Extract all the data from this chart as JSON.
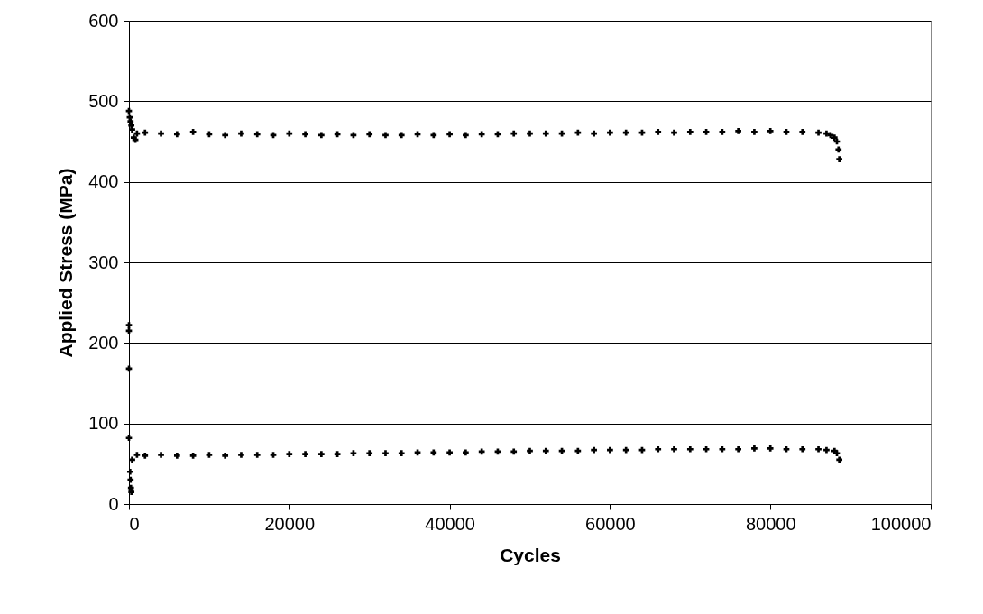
{
  "chart_data": {
    "type": "scatter",
    "xlabel": "Cycles",
    "ylabel": "Applied Stress (MPa)",
    "xlim": [
      0,
      100000
    ],
    "xticks": [
      0,
      20000,
      40000,
      60000,
      80000,
      100000
    ],
    "ylim": [
      0,
      600
    ],
    "yticks": [
      0,
      100,
      200,
      300,
      400,
      500,
      600
    ],
    "grid": "y",
    "marker": "cross",
    "series": [
      {
        "color": "#000000",
        "x": [
          0,
          100,
          200,
          300,
          400,
          600,
          800,
          1000,
          2000,
          4000,
          6000,
          8000,
          10000,
          12000,
          14000,
          16000,
          18000,
          20000,
          22000,
          24000,
          26000,
          28000,
          30000,
          32000,
          34000,
          36000,
          38000,
          40000,
          42000,
          44000,
          46000,
          48000,
          50000,
          52000,
          54000,
          56000,
          58000,
          60000,
          62000,
          64000,
          66000,
          68000,
          70000,
          72000,
          74000,
          76000,
          78000,
          80000,
          82000,
          84000,
          86000,
          87000,
          87500,
          88000,
          88300,
          88500,
          88600
        ],
        "values": [
          488,
          480,
          475,
          470,
          465,
          455,
          452,
          460,
          461,
          460,
          459,
          462,
          459,
          458,
          460,
          459,
          458,
          460,
          459,
          458,
          459,
          458,
          459,
          458,
          458,
          459,
          458,
          459,
          458,
          459,
          459,
          460,
          460,
          460,
          460,
          461,
          460,
          461,
          461,
          461,
          462,
          461,
          462,
          462,
          462,
          463,
          462,
          463,
          462,
          462,
          461,
          460,
          458,
          455,
          450,
          440,
          428
        ]
      },
      {
        "color": "#000000",
        "x": [
          0,
          0,
          0,
          0,
          150,
          200,
          250,
          300,
          400,
          1000,
          2000,
          4000,
          6000,
          8000,
          10000,
          12000,
          14000,
          16000,
          18000,
          20000,
          22000,
          24000,
          26000,
          28000,
          30000,
          32000,
          34000,
          36000,
          38000,
          40000,
          42000,
          44000,
          46000,
          48000,
          50000,
          52000,
          54000,
          56000,
          58000,
          60000,
          62000,
          64000,
          66000,
          68000,
          70000,
          72000,
          74000,
          76000,
          78000,
          80000,
          82000,
          84000,
          86000,
          87000,
          88000,
          88300,
          88600
        ],
        "values": [
          222,
          215,
          168,
          82,
          40,
          30,
          20,
          15,
          55,
          61,
          60,
          61,
          60,
          60,
          61,
          60,
          61,
          61,
          61,
          62,
          62,
          62,
          62,
          63,
          63,
          63,
          63,
          64,
          64,
          64,
          64,
          65,
          65,
          65,
          66,
          66,
          66,
          66,
          67,
          67,
          67,
          67,
          68,
          68,
          68,
          68,
          68,
          68,
          69,
          69,
          68,
          68,
          68,
          67,
          66,
          63,
          55
        ]
      }
    ]
  }
}
